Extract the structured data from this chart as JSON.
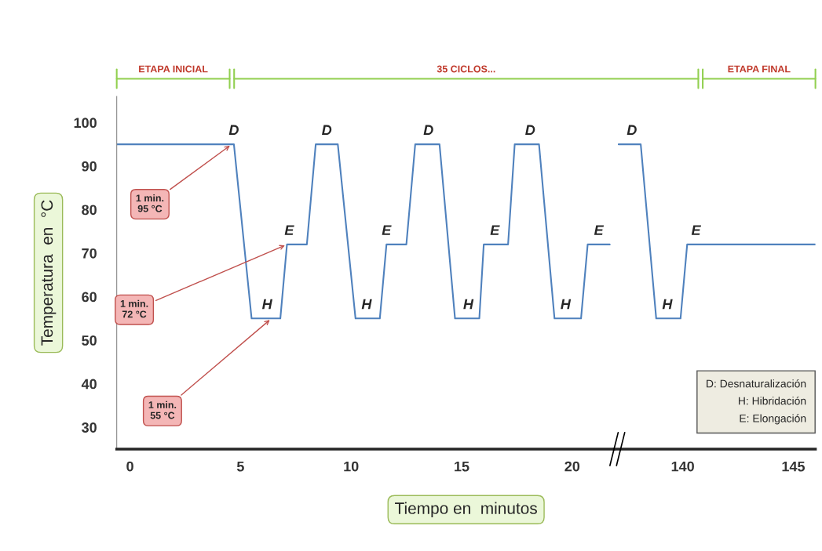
{
  "chart_data": [
    {
      "type": "line",
      "xlabel": "Tiempo en  minutos",
      "ylabel": "Temperatura  en  °C",
      "x": [
        -0.6,
        4.7,
        5.5,
        6.8,
        7.1,
        8.0,
        8.4,
        9.4,
        10.2,
        11.3,
        11.6,
        12.5,
        12.9,
        14.0,
        14.7,
        15.8,
        16.0,
        17.1,
        17.4,
        18.5,
        19.2,
        20.4,
        20.7,
        21.7
      ],
      "series": [
        {
          "color": "#4f81bd",
          "values": [
            95,
            95,
            55,
            55,
            72,
            72,
            95,
            95,
            55,
            55,
            72,
            72,
            95,
            95,
            55,
            55,
            72,
            72,
            95,
            95,
            55,
            55,
            72,
            72
          ]
        }
      ],
      "xlim": [
        -0.6,
        21.9
      ],
      "ylim": [
        25,
        106
      ],
      "xticks": [
        0,
        5,
        10,
        15,
        20
      ],
      "yticks": [
        30,
        40,
        50,
        60,
        70,
        80,
        90,
        100
      ],
      "grid": false,
      "legend": false,
      "marker": "none",
      "line_style": "solid",
      "annotations": [
        "ETAPA INICIAL",
        "35 CICLOS...",
        {
          "text": "1 min.\n95 °C",
          "x": 4.6,
          "y": 95
        },
        {
          "text": "1 min.\n72 °C",
          "x": 7.1,
          "y": 72
        },
        {
          "text": "1 min.\n55 °C",
          "x": 6.4,
          "y": 55
        },
        {
          "text": "D",
          "x": 4.7,
          "y": 95
        },
        {
          "text": "D",
          "x": 8.9,
          "y": 95
        },
        {
          "text": "D",
          "x": 13.5,
          "y": 95
        },
        {
          "text": "D",
          "x": 18.1,
          "y": 95
        },
        {
          "text": "E",
          "x": 7.2,
          "y": 72
        },
        {
          "text": "E",
          "x": 11.6,
          "y": 72
        },
        {
          "text": "E",
          "x": 16.5,
          "y": 72
        },
        {
          "text": "E",
          "x": 21.2,
          "y": 72
        },
        {
          "text": "H",
          "x": 6.2,
          "y": 55
        },
        {
          "text": "H",
          "x": 10.7,
          "y": 55
        },
        {
          "text": "H",
          "x": 15.3,
          "y": 55
        },
        {
          "text": "H",
          "x": 19.7,
          "y": 55
        }
      ]
    },
    {
      "type": "line",
      "x": [
        137.1,
        138.1,
        138.8,
        139.9,
        140.2,
        146.0
      ],
      "series": [
        {
          "color": "#4f81bd",
          "values": [
            95,
            95,
            55,
            55,
            72,
            72
          ]
        }
      ],
      "xlim": [
        136.9,
        146.0
      ],
      "ylim": [
        25,
        106
      ],
      "xticks": [
        140,
        145
      ],
      "grid": false,
      "legend": false,
      "marker": "none",
      "line_style": "solid",
      "tick_labels": "x",
      "annotations": [
        "ETAPA FINAL",
        {
          "text": "D",
          "x": 137.7,
          "y": 95
        },
        {
          "text": "E",
          "x": 140.6,
          "y": 72
        },
        {
          "text": "H",
          "x": 139.3,
          "y": 55
        },
        "D: Desnaturalización\nH: Hibridación\nE: Elongación"
      ]
    }
  ]
}
